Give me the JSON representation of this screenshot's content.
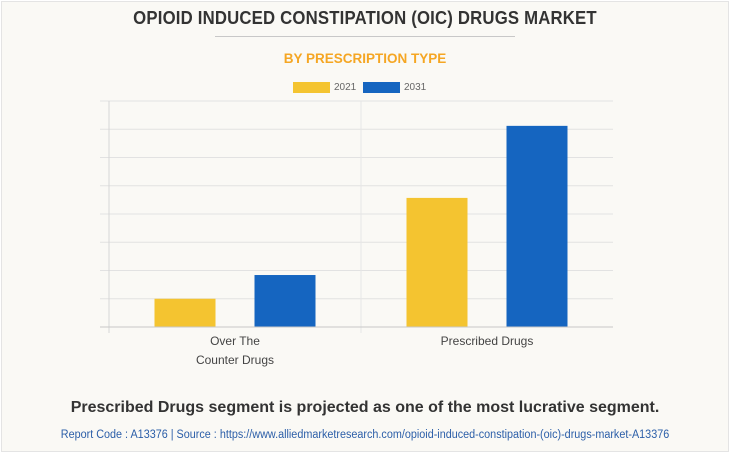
{
  "header": {
    "title": "OPIOID INDUCED CONSTIPATION (OIC) DRUGS MARKET",
    "subtitle": "BY PRESCRIPTION TYPE"
  },
  "colors": {
    "series_2021": "#f4c430",
    "series_2031": "#1565c0",
    "subtitle": "#f5a623",
    "gridline": "#e2e2e2",
    "axis": "#c8c8c8"
  },
  "chart_data": {
    "type": "bar",
    "title": "OPIOID INDUCED CONSTIPATION (OIC) DRUGS MARKET",
    "subtitle": "BY PRESCRIPTION TYPE",
    "categories": [
      "Over The Counter Drugs",
      "Prescribed Drugs"
    ],
    "category_lines": [
      [
        "Over The",
        "Counter Drugs"
      ],
      [
        "Prescribed Drugs"
      ]
    ],
    "series": [
      {
        "name": "2021",
        "values": [
          1.0,
          4.57
        ]
      },
      {
        "name": "2031",
        "values": [
          1.84,
          7.12
        ]
      }
    ],
    "xlabel": "",
    "ylabel": "",
    "ylim": [
      0,
      8
    ],
    "y_units_note": "relative units (gridline intervals); no y-axis tick labels shown",
    "grid": true,
    "legend": "top-center"
  },
  "footer": {
    "note": "Prescribed Drugs segment is projected as one of the most lucrative segment.",
    "source": "Report Code : A13376  |  Source : https://www.alliedmarketresearch.com/opioid-induced-constipation-(oic)-drugs-market-A13376"
  }
}
